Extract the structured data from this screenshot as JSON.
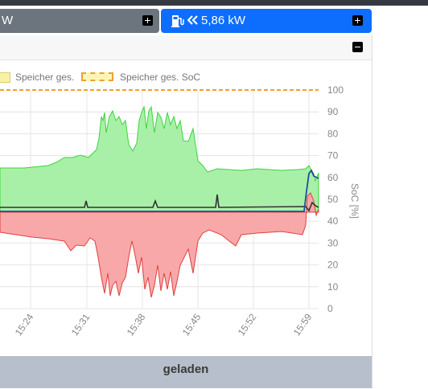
{
  "tiles": {
    "left": {
      "text": "W"
    },
    "right": {
      "text": "5,86 kW",
      "icon": "ev-charger-icon",
      "direction_icon": "double-chevron-left-icon"
    }
  },
  "legend": {
    "storage_total": "Speicher ges.",
    "storage_soc": "Speicher ges. SoC"
  },
  "footer": {
    "label": "geladen"
  },
  "chart_data": {
    "type": "area",
    "x_ticks": [
      "15:24",
      "15:31",
      "15:38",
      "15:45",
      "15:52",
      "15:59"
    ],
    "y2_ticks": [
      "0",
      "10",
      "20",
      "30",
      "40",
      "50",
      "60",
      "70",
      "80",
      "90",
      "100"
    ],
    "y2label": "SoC [%]",
    "y2lim": [
      0,
      100
    ],
    "grid": true,
    "legend_position": "top",
    "series": [
      {
        "name": "Speicher ges.",
        "color": "#e6d96a"
      },
      {
        "name": "Speicher ges. SoC",
        "color": "#f0a030"
      }
    ],
    "colors": {
      "positive_area": "#a8f0a8",
      "positive_line": "#3cd43c",
      "negative_area": "#f8a8a8",
      "negative_line": "#e04040",
      "dark_line": "#333333",
      "blue_line": "#1f4f9f"
    }
  }
}
